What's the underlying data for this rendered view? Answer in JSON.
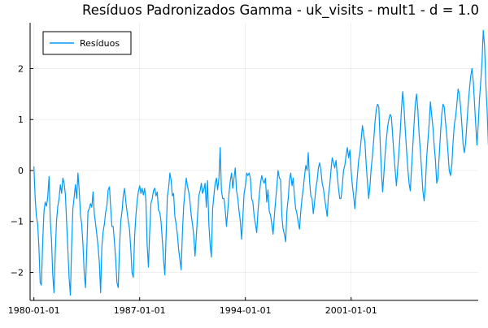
{
  "chart_data": {
    "type": "line",
    "title": "Resíduos Padronizados Gamma - uk_visits - mult1 - d = 1.0",
    "xlabel": "",
    "ylabel": "",
    "x_start": "1980-01",
    "x_frequency": "monthly",
    "xlim": [
      "1979-10-01",
      "2009-06-01"
    ],
    "ylim": [
      -2.55,
      2.9
    ],
    "x_ticks": [
      "1980-01-01",
      "1987-01-01",
      "1994-01-01",
      "2001-01-01"
    ],
    "y_ticks": [
      -2,
      -1,
      0,
      1,
      2
    ],
    "y_tick_labels": [
      "−2",
      "−1",
      "0",
      "1",
      "2"
    ],
    "grid": true,
    "legend_position": "top-left",
    "series": [
      {
        "name": "Resíduos",
        "color": "#009AFA",
        "values": [
          0.08,
          -0.55,
          -0.9,
          -1.05,
          -1.5,
          -2.2,
          -2.25,
          -1.4,
          -0.8,
          -0.62,
          -0.7,
          -0.52,
          -0.12,
          -1.0,
          -1.35,
          -2.05,
          -2.4,
          -1.6,
          -1.0,
          -0.7,
          -0.55,
          -0.28,
          -0.45,
          -0.15,
          -0.25,
          -0.48,
          -1.0,
          -1.55,
          -2.1,
          -2.45,
          -1.5,
          -0.75,
          -0.52,
          -0.28,
          -0.55,
          -0.05,
          -0.4,
          -0.88,
          -1.05,
          -1.45,
          -2.0,
          -2.3,
          -1.6,
          -0.8,
          -0.75,
          -0.65,
          -0.72,
          -0.42,
          -0.85,
          -1.05,
          -1.25,
          -1.5,
          -1.8,
          -2.4,
          -1.5,
          -1.2,
          -1.05,
          -0.82,
          -0.68,
          -0.38,
          -0.32,
          -0.75,
          -1.1,
          -1.1,
          -1.4,
          -1.75,
          -2.2,
          -2.3,
          -1.5,
          -1.0,
          -0.8,
          -0.5,
          -0.35,
          -0.62,
          -0.8,
          -1.0,
          -1.15,
          -1.55,
          -2.0,
          -2.1,
          -1.3,
          -0.9,
          -0.6,
          -0.42,
          -0.3,
          -0.45,
          -0.35,
          -0.48,
          -0.35,
          -0.58,
          -1.45,
          -1.9,
          -1.2,
          -0.65,
          -0.55,
          -0.4,
          -0.35,
          -0.5,
          -0.42,
          -0.78,
          -0.82,
          -1.0,
          -1.35,
          -1.75,
          -2.05,
          -1.3,
          -0.5,
          -0.35,
          -0.05,
          -0.2,
          -0.5,
          -0.45,
          -0.9,
          -1.05,
          -1.25,
          -1.55,
          -1.75,
          -1.95,
          -1.2,
          -0.7,
          -0.4,
          -0.15,
          -0.3,
          -0.42,
          -0.6,
          -0.88,
          -1.05,
          -1.28,
          -1.68,
          -1.3,
          -0.9,
          -0.5,
          -0.4,
          -0.25,
          -0.45,
          -0.38,
          -0.25,
          -0.72,
          -0.2,
          -1.05,
          -1.45,
          -1.7,
          -0.75,
          -0.5,
          -0.25,
          -0.15,
          -0.38,
          -0.15,
          0.45,
          -0.4,
          -0.55,
          -0.55,
          -0.78,
          -1.1,
          -0.78,
          -0.45,
          -0.2,
          -0.05,
          -0.35,
          -0.15,
          0.05,
          -0.4,
          -0.55,
          -0.8,
          -1.0,
          -1.35,
          -0.9,
          -0.45,
          -0.3,
          -0.05,
          -0.1,
          -0.05,
          -0.15,
          -0.55,
          -0.62,
          -0.9,
          -1.05,
          -1.22,
          -0.8,
          -0.5,
          -0.25,
          -0.1,
          -0.2,
          -0.25,
          -0.15,
          -0.62,
          -0.38,
          -0.8,
          -0.88,
          -1.05,
          -1.25,
          -0.9,
          -0.6,
          -0.3,
          0.0,
          -0.15,
          -0.18,
          -0.9,
          -1.15,
          -1.25,
          -1.4,
          -0.8,
          -0.55,
          -0.2,
          -0.05,
          -0.3,
          -0.15,
          -0.5,
          -0.75,
          -0.85,
          -1.02,
          -1.15,
          -0.8,
          -0.55,
          -0.35,
          -0.1,
          0.1,
          0.0,
          0.35,
          -0.2,
          -0.5,
          -0.55,
          -0.85,
          -0.62,
          -0.35,
          -0.2,
          0.05,
          0.15,
          0.0,
          -0.25,
          -0.35,
          -0.55,
          -0.72,
          -0.9,
          -0.5,
          -0.3,
          0.0,
          0.25,
          0.15,
          0.05,
          0.2,
          -0.1,
          -0.35,
          -0.55,
          -0.55,
          -0.3,
          0.0,
          0.1,
          0.3,
          0.45,
          0.25,
          0.4,
          -0.02,
          -0.3,
          -0.5,
          -0.75,
          -0.45,
          -0.1,
          0.2,
          0.35,
          0.62,
          0.88,
          0.7,
          0.55,
          0.1,
          -0.25,
          -0.55,
          -0.3,
          0.05,
          0.3,
          0.6,
          0.95,
          1.2,
          1.3,
          1.25,
          0.62,
          0.0,
          -0.42,
          -0.1,
          0.3,
          0.6,
          0.85,
          1.0,
          1.1,
          1.05,
          0.7,
          0.32,
          0.0,
          -0.3,
          0.05,
          0.35,
          0.75,
          1.2,
          1.55,
          1.25,
          0.8,
          0.4,
          0.05,
          -0.25,
          -0.4,
          0.05,
          0.5,
          0.9,
          1.3,
          1.5,
          1.2,
          0.72,
          0.4,
          0.0,
          -0.4,
          -0.6,
          -0.3,
          0.25,
          0.6,
          0.9,
          1.35,
          1.1,
          0.85,
          0.5,
          0.2,
          -0.25,
          -0.15,
          0.3,
          0.72,
          1.1,
          1.3,
          1.25,
          0.95,
          0.7,
          0.35,
          0.0,
          -0.1,
          0.1,
          0.55,
          0.9,
          1.05,
          1.3,
          1.6,
          1.5,
          1.25,
          0.9,
          0.5,
          0.35,
          0.55,
          0.95,
          1.3,
          1.6,
          1.85,
          2.0,
          1.75,
          1.35,
          0.9,
          0.5,
          0.9,
          1.4,
          1.75,
          2.15,
          2.75,
          2.45,
          1.7,
          1.2,
          0.5,
          1.0,
          1.6,
          1.85,
          2.55,
          1.8
        ]
      }
    ]
  }
}
